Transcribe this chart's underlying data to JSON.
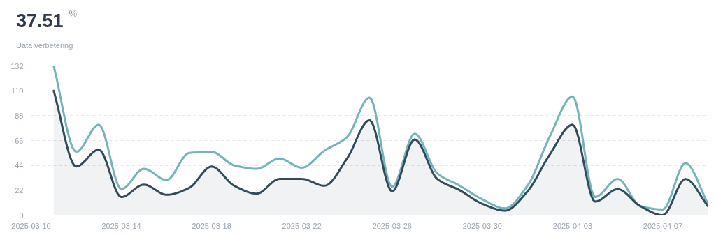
{
  "chart_data": {
    "type": "line",
    "title": "37.51",
    "annotations": [
      "%"
    ],
    "subtitle": "Data verbetering",
    "x": [
      "2025-03-11",
      "2025-03-12",
      "2025-03-13",
      "2025-03-14",
      "2025-03-15",
      "2025-03-16",
      "2025-03-17",
      "2025-03-18",
      "2025-03-19",
      "2025-03-20",
      "2025-03-21",
      "2025-03-22",
      "2025-03-23",
      "2025-03-24",
      "2025-03-25",
      "2025-03-26",
      "2025-03-27",
      "2025-03-28",
      "2025-03-29",
      "2025-03-30",
      "2025-03-31",
      "2025-04-01",
      "2025-04-02",
      "2025-04-03",
      "2025-04-04",
      "2025-04-05",
      "2025-04-06",
      "2025-04-07",
      "2025-04-08",
      "2025-04-09"
    ],
    "series": [
      {
        "color": "#72b3bd",
        "values": [
          132,
          56,
          80,
          23,
          41,
          31,
          55,
          56,
          44,
          41,
          50,
          42,
          57,
          69,
          104,
          25,
          72,
          37,
          26,
          14,
          6,
          26,
          70,
          105,
          16,
          32,
          8,
          5,
          46,
          10
        ]
      },
      {
        "type": "area",
        "color": "#2f4b5c",
        "values": [
          110,
          43,
          58,
          16,
          27,
          18,
          24,
          43,
          26,
          19,
          32,
          32,
          26,
          50,
          84,
          21,
          67,
          32,
          22,
          10,
          4,
          21,
          54,
          80,
          12,
          23,
          8,
          0,
          32,
          8
        ]
      }
    ],
    "xlim": [
      "2025-03-10",
      "2025-04-09"
    ],
    "xticks": [
      "2025-03-10",
      "2025-03-14",
      "2025-03-18",
      "2025-03-22",
      "2025-03-26",
      "2025-03-30",
      "2025-04-03",
      "2025-04-07"
    ],
    "ylim": [
      0,
      132
    ],
    "yticks": [
      0,
      22,
      44,
      66,
      88,
      110,
      132
    ],
    "grid": "y",
    "line_style": "solid",
    "marker": "none"
  }
}
